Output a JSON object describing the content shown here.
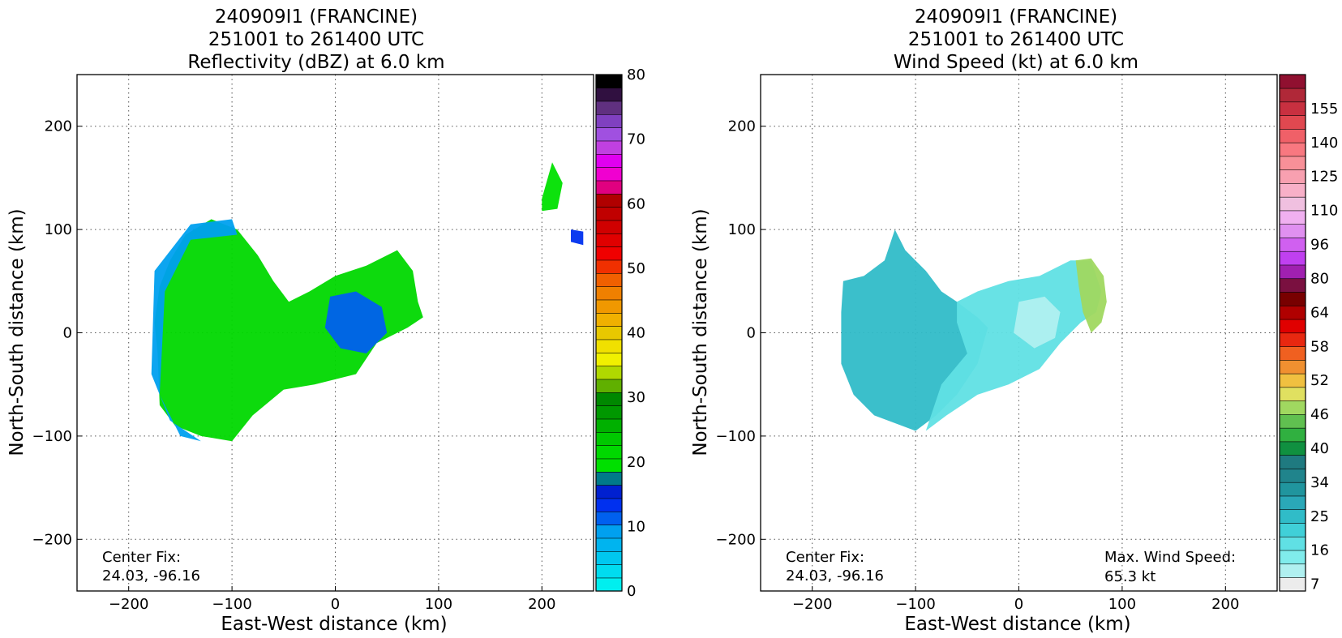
{
  "colors": {
    "reflectivity": [
      "#00efef",
      "#00dcef",
      "#00c8ef",
      "#00b4ef",
      "#00a0ef",
      "#0060ef",
      "#0030ef",
      "#0020d0",
      "#007a8a",
      "#00e000",
      "#00d800",
      "#00c800",
      "#00b000",
      "#009800",
      "#008800",
      "#60b000",
      "#b0d800",
      "#f0f000",
      "#f0e000",
      "#e8c800",
      "#f0b000",
      "#f09800",
      "#f08000",
      "#f06000",
      "#f03000",
      "#f00000",
      "#e00000",
      "#d00000",
      "#c00000",
      "#b00000",
      "#e00080",
      "#f000d0",
      "#e000f0",
      "#c040e0",
      "#a050e0",
      "#8040c0",
      "#603080",
      "#301040",
      "#000000"
    ],
    "windspeed": [
      "#ececec",
      "#b0f0f0",
      "#80ecec",
      "#60e0e4",
      "#40d0d8",
      "#30bcc8",
      "#2aa8b8",
      "#20959e",
      "#20848c",
      "#1f7a80",
      "#109040",
      "#30b040",
      "#60c050",
      "#a0d860",
      "#e0e060",
      "#f0c040",
      "#f09030",
      "#f06020",
      "#e82810",
      "#e00000",
      "#b00000",
      "#780000",
      "#7a1040",
      "#a020b0",
      "#c040f0",
      "#d060f0",
      "#e090f0",
      "#f0b0f0",
      "#f0c0e0",
      "#f8b0c8",
      "#f8a0b0",
      "#f89098",
      "#f87880",
      "#f06068",
      "#e04850",
      "#c83040",
      "#b02838",
      "#901030"
    ]
  },
  "chart_data": [
    {
      "type": "heatmap",
      "title": "240909I1 (FRANCINE)\n251001 to 261400 UTC\nReflectivity (dBZ) at 6.0 km",
      "title_lines": [
        "240909I1 (FRANCINE)",
        "251001 to 261400 UTC",
        "Reflectivity (dBZ) at 6.0 km"
      ],
      "xlabel": "East-West distance (km)",
      "ylabel": "North-South distance (km)",
      "xlim": [
        -250,
        250
      ],
      "ylim": [
        -250,
        250
      ],
      "xticks": [
        -200,
        -100,
        0,
        100,
        200
      ],
      "yticks": [
        -200,
        -100,
        0,
        100,
        200
      ],
      "grid": true,
      "colorbar": {
        "min": 0,
        "max": 80,
        "ticks": [
          0,
          10,
          20,
          30,
          40,
          50,
          60,
          70,
          80
        ],
        "palette": "reflectivity"
      },
      "annotations": [
        {
          "text": "Center Fix:",
          "corner": "bottom-left",
          "line": 1
        },
        {
          "text": "24.03, -96.16",
          "corner": "bottom-left",
          "line": 2
        }
      ],
      "echo_regions": [
        {
          "name": "main band",
          "outline": [
            [
              -170,
              45
            ],
            [
              -160,
              70
            ],
            [
              -145,
              95
            ],
            [
              -120,
              110
            ],
            [
              -95,
              100
            ],
            [
              -75,
              75
            ],
            [
              -60,
              50
            ],
            [
              -45,
              30
            ],
            [
              -25,
              40
            ],
            [
              0,
              55
            ],
            [
              30,
              65
            ],
            [
              60,
              80
            ],
            [
              75,
              60
            ],
            [
              80,
              30
            ],
            [
              85,
              15
            ],
            [
              70,
              5
            ],
            [
              40,
              -10
            ],
            [
              20,
              -40
            ],
            [
              -20,
              -50
            ],
            [
              -50,
              -55
            ],
            [
              -80,
              -80
            ],
            [
              -100,
              -105
            ],
            [
              -130,
              -100
            ],
            [
              -155,
              -90
            ],
            [
              -170,
              -70
            ],
            [
              -172,
              -20
            ],
            [
              -175,
              10
            ]
          ],
          "level": 22
        },
        {
          "name": "outer fringe",
          "outline": [
            [
              -175,
              60
            ],
            [
              -140,
              105
            ],
            [
              -100,
              110
            ],
            [
              -95,
              95
            ],
            [
              -140,
              90
            ],
            [
              -165,
              40
            ],
            [
              -170,
              -60
            ],
            [
              -150,
              -100
            ],
            [
              -130,
              -105
            ],
            [
              -160,
              -85
            ],
            [
              -178,
              -40
            ]
          ],
          "level": 10
        },
        {
          "name": "core",
          "outline": [
            [
              -5,
              35
            ],
            [
              20,
              40
            ],
            [
              45,
              25
            ],
            [
              50,
              0
            ],
            [
              30,
              -20
            ],
            [
              5,
              -15
            ],
            [
              -10,
              5
            ]
          ],
          "level": 12
        },
        {
          "name": "east cell",
          "outline": [
            [
              200,
              130
            ],
            [
              210,
              165
            ],
            [
              220,
              145
            ],
            [
              215,
              120
            ],
            [
              200,
              118
            ]
          ],
          "level": 20
        },
        {
          "name": "far east cell",
          "outline": [
            [
              228,
              100
            ],
            [
              240,
              98
            ],
            [
              240,
              85
            ],
            [
              228,
              88
            ]
          ],
          "level": 14
        }
      ]
    },
    {
      "type": "heatmap",
      "title": "240909I1 (FRANCINE)\n251001 to 261400 UTC\nWind Speed (kt) at 6.0 km",
      "title_lines": [
        "240909I1 (FRANCINE)",
        "251001 to 261400 UTC",
        "Wind Speed (kt) at 6.0 km"
      ],
      "xlabel": "East-West distance (km)",
      "ylabel": "North-South distance (km)",
      "xlim": [
        -250,
        250
      ],
      "ylim": [
        -250,
        250
      ],
      "xticks": [
        -200,
        -100,
        0,
        100,
        200
      ],
      "yticks": [
        -200,
        -100,
        0,
        100,
        200
      ],
      "grid": true,
      "colorbar": {
        "min": 7,
        "max": 160,
        "ticks": [
          7,
          16,
          25,
          34,
          40,
          46,
          52,
          58,
          64,
          80,
          96,
          110,
          125,
          140,
          155
        ],
        "palette": "windspeed"
      },
      "contour_label": "34",
      "annotations": [
        {
          "text": "Center Fix:",
          "corner": "bottom-left",
          "line": 1
        },
        {
          "text": "24.03, -96.16",
          "corner": "bottom-left",
          "line": 2
        },
        {
          "text": "Max. Wind Speed:",
          "corner": "bottom-right",
          "line": 1
        },
        {
          "text": "65.3 kt",
          "corner": "bottom-right",
          "line": 2
        }
      ],
      "max_wind_speed_kt": 65.3,
      "wind_regions": [
        {
          "name": "west sector",
          "outline": [
            [
              -170,
              50
            ],
            [
              -150,
              55
            ],
            [
              -130,
              70
            ],
            [
              -120,
              100
            ],
            [
              -110,
              80
            ],
            [
              -90,
              60
            ],
            [
              -75,
              40
            ],
            [
              -60,
              30
            ],
            [
              -40,
              15
            ],
            [
              -30,
              5
            ],
            [
              -40,
              -30
            ],
            [
              -60,
              -60
            ],
            [
              -80,
              -80
            ],
            [
              -100,
              -95
            ],
            [
              -140,
              -80
            ],
            [
              -160,
              -60
            ],
            [
              -172,
              -30
            ],
            [
              -172,
              20
            ]
          ],
          "value": 30
        },
        {
          "name": "central sector",
          "outline": [
            [
              -60,
              30
            ],
            [
              -40,
              40
            ],
            [
              -10,
              50
            ],
            [
              20,
              55
            ],
            [
              50,
              70
            ],
            [
              70,
              70
            ],
            [
              80,
              40
            ],
            [
              75,
              20
            ],
            [
              60,
              10
            ],
            [
              40,
              -10
            ],
            [
              20,
              -35
            ],
            [
              -10,
              -50
            ],
            [
              -40,
              -60
            ],
            [
              -70,
              -80
            ],
            [
              -90,
              -95
            ],
            [
              -75,
              -50
            ],
            [
              -50,
              -20
            ],
            [
              -60,
              10
            ]
          ],
          "value": 22
        },
        {
          "name": "inner calm",
          "outline": [
            [
              0,
              30
            ],
            [
              25,
              35
            ],
            [
              40,
              20
            ],
            [
              35,
              -5
            ],
            [
              15,
              -15
            ],
            [
              -5,
              0
            ]
          ],
          "value": 14
        },
        {
          "name": "east maximum",
          "outline": [
            [
              55,
              70
            ],
            [
              70,
              72
            ],
            [
              82,
              55
            ],
            [
              85,
              30
            ],
            [
              80,
              10
            ],
            [
              70,
              0
            ],
            [
              62,
              20
            ],
            [
              58,
              45
            ]
          ],
          "value": 62
        }
      ]
    }
  ]
}
